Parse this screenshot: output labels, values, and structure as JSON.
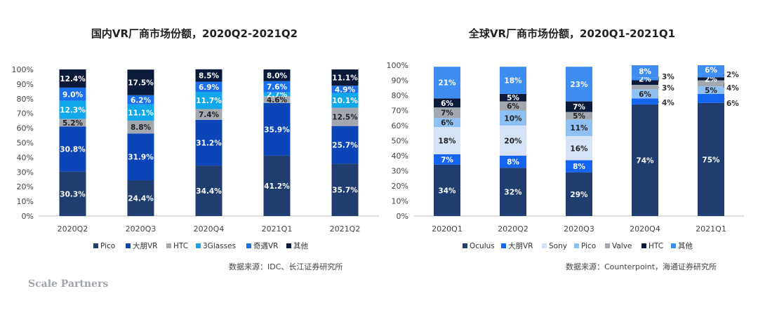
{
  "chart_data": [
    {
      "type": "bar",
      "stacked": true,
      "title": "国内VR厂商市场份额，2020Q2-2021Q2",
      "categories": [
        "2020Q2",
        "2020Q3",
        "2020Q4",
        "2021Q1",
        "2021Q2"
      ],
      "y_ticks": [
        "0%",
        "10%",
        "20%",
        "30%",
        "40%",
        "50%",
        "60%",
        "70%",
        "80%",
        "90%",
        "100%"
      ],
      "ylim": [
        0,
        100
      ],
      "series": [
        {
          "name": "Pico",
          "color": "#1f3d6e",
          "values": [
            30.3,
            24.4,
            34.4,
            41.2,
            35.7
          ],
          "labels": [
            "30.3%",
            "24.4%",
            "34.4%",
            "41.2%",
            "35.7%"
          ]
        },
        {
          "name": "大朋VR",
          "color": "#0b45b8",
          "values": [
            30.8,
            31.9,
            31.2,
            35.9,
            25.7
          ],
          "labels": [
            "30.8%",
            "31.9%",
            "31.2%",
            "35.9%",
            "25.7%"
          ]
        },
        {
          "name": "HTC",
          "color": "#a3a8b0",
          "values": [
            5.2,
            8.8,
            7.4,
            4.6,
            12.5
          ],
          "labels": [
            "5.2%",
            "8.8%",
            "7.4%",
            "4.6%",
            "12.5%"
          ]
        },
        {
          "name": "3Glasses",
          "color": "#10a8ea",
          "values": [
            12.3,
            11.1,
            11.7,
            2.7,
            10.1
          ],
          "labels": [
            "12.3%",
            "11.1%",
            "11.7%",
            "2.7%",
            "10.1%"
          ]
        },
        {
          "name": "奇遇VR",
          "color": "#1a6fea",
          "values": [
            9.0,
            6.2,
            6.9,
            7.6,
            4.9
          ],
          "labels": [
            "9.0%",
            "6.2%",
            "6.9%",
            "7.6%",
            "4.9%"
          ]
        },
        {
          "name": "其他",
          "color": "#0b1a3a",
          "values": [
            12.4,
            17.5,
            8.5,
            8.0,
            11.1
          ],
          "labels": [
            "12.4%",
            "17.5%",
            "8.5%",
            "8.0%",
            "11.1%"
          ]
        }
      ],
      "source": "数据来源：IDC、长江证券研究所"
    },
    {
      "type": "bar",
      "stacked": true,
      "title": "全球VR厂商市场份额，2020Q1-2021Q1",
      "categories": [
        "2020Q1",
        "2020Q2",
        "2020Q3",
        "2020Q4",
        "2021Q1"
      ],
      "y_ticks": [
        "0%",
        "10%",
        "20%",
        "30%",
        "40%",
        "50%",
        "60%",
        "70%",
        "80%",
        "90%",
        "100%"
      ],
      "ylim": [
        0,
        100
      ],
      "series": [
        {
          "name": "Oculus",
          "color": "#1f3d6e",
          "values": [
            34,
            32,
            29,
            74,
            75
          ],
          "labels": [
            "34%",
            "32%",
            "29%",
            "74%",
            "75%"
          ]
        },
        {
          "name": "大朋VR",
          "color": "#1565f0",
          "values": [
            7,
            8,
            8,
            4,
            6
          ],
          "labels": [
            "7%",
            "8%",
            "8%",
            "4%",
            "6%"
          ]
        },
        {
          "name": "Sony",
          "color": "#d6e2f5",
          "values": [
            18,
            20,
            16,
            0,
            0
          ],
          "labels": [
            "18%",
            "20%",
            "16%",
            "",
            ""
          ]
        },
        {
          "name": "Pico",
          "color": "#8fc0f3",
          "values": [
            6,
            10,
            11,
            6,
            5
          ],
          "labels": [
            "6%",
            "10%",
            "11%",
            "6%",
            "5%"
          ]
        },
        {
          "name": "Valve",
          "color": "#a3a8b0",
          "values": [
            7,
            6,
            5,
            3,
            4
          ],
          "labels": [
            "7%",
            "6%",
            "5%",
            "3%",
            "4%"
          ]
        },
        {
          "name": "HTC",
          "color": "#0b1a3a",
          "values": [
            6,
            5,
            7,
            3,
            2
          ],
          "labels": [
            "6%",
            "5%",
            "7%",
            "3%",
            "2%"
          ]
        },
        {
          "name": "其他",
          "color": "#3d8ef0",
          "values": [
            21,
            18,
            23,
            2,
            2
          ],
          "labels": [
            "21%",
            "18%",
            "23%",
            "2%",
            "2%"
          ]
        },
        {
          "name": "",
          "color": "#3d8ef0",
          "values": [
            0,
            0,
            0,
            8,
            6
          ],
          "labels": [
            "",
            "",
            "",
            "8%",
            "6%"
          ]
        }
      ],
      "source": "数据来源：Counterpoint，海通证券研究所"
    }
  ],
  "watermark": "Scale Partners"
}
